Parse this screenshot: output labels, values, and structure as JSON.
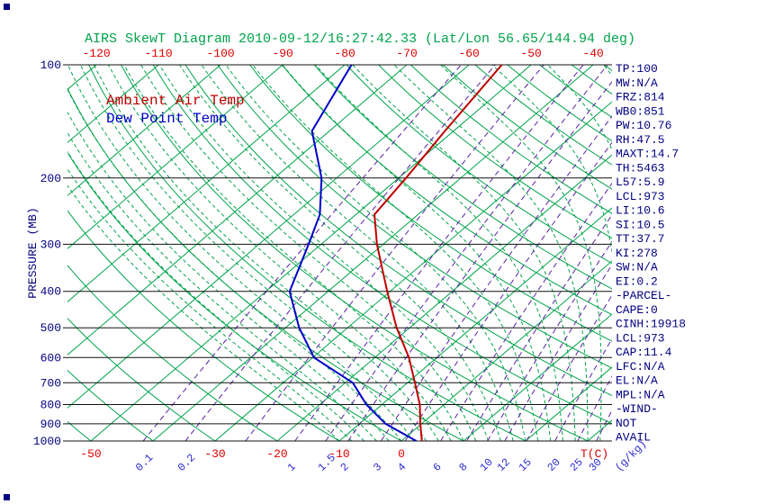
{
  "title": "AIRS SkewT Diagram 2010-09-12/16:27:42.33 (Lat/Lon 56.65/144.94 deg)",
  "legend": {
    "ambient": "Ambient Air Temp",
    "dew_point": "Dew Point Temp"
  },
  "axes": {
    "pressure_label": "PRESSURE (MB)",
    "pressure_ticks_mb": [
      100,
      200,
      300,
      400,
      500,
      600,
      700,
      800,
      900,
      1000
    ],
    "top_temp_ticks_c": [
      -120,
      -110,
      -100,
      -90,
      -80,
      -70,
      -60,
      -50,
      -40
    ],
    "bottom_temp_ticks_c": [
      -50,
      -30,
      -20,
      -10,
      0
    ],
    "temp_unit_label": "T(C)",
    "mixing_ratio_labels": [
      "0.1",
      "0.2",
      "1",
      "1.5",
      "2",
      "3",
      "4",
      "6",
      "8",
      "10",
      "12",
      "15",
      "20",
      "25",
      "30"
    ],
    "mixing_unit_label": "(g/kg)"
  },
  "stats_panel": {
    "lines": [
      "TP:100",
      "MW:N/A",
      "FRZ:814",
      "WB0:851",
      "PW:10.76",
      "RH:47.5",
      "MAXT:14.7",
      "TH:5463",
      "L57:5.9",
      "LCL:973",
      "LI:10.6",
      "SI:10.5",
      "TT:37.7",
      "KI:278",
      "SW:N/A",
      "EI:0.2",
      "-PARCEL-",
      "CAPE:0",
      "CINH:19918",
      "LCL:973",
      "CAP:11.4",
      "LFC:N/A",
      "EL:N/A",
      "MPL:N/A",
      "-WIND-",
      "NOT",
      "AVAIL"
    ]
  },
  "colors": {
    "grid_green": "#00a34a",
    "mixing_ratio_violet": "#5b21a6",
    "ambient_temp_red": "#c00000",
    "dew_point_blue": "#0000c8",
    "axis_label_red": "#e00000",
    "mixing_label_blue": "#2a2ad0",
    "panel_navy": "#000080",
    "pressure_line_black": "#111111",
    "background": "#ffffff"
  },
  "chart_data": {
    "type": "line",
    "title": "AIRS SkewT Diagram 2010-09-12/16:27:42.33 (Lat/Lon 56.65/144.94 deg)",
    "xlabel": "T(C)",
    "ylabel": "PRESSURE (MB)",
    "y_scale": "log",
    "ylim_mb": [
      100,
      1000
    ],
    "x_ticks_top_c": [
      -120,
      -110,
      -100,
      -90,
      -80,
      -70,
      -60,
      -50,
      -40
    ],
    "x_ticks_bottom_c": [
      -50,
      -30,
      -20,
      -10,
      0
    ],
    "grid": "skew-t isotherms, dry adiabats, dashed moist adiabats, dashed mixing-ratio lines",
    "legend_position": "top-left-inside",
    "series": [
      {
        "name": "Ambient Air Temp",
        "color": "#c00000",
        "pressure_mb": [
          1000,
          900,
          800,
          700,
          600,
          500,
          400,
          300,
          250,
          200,
          150,
          100
        ],
        "temp_c": [
          3.3,
          -0.2,
          -3.9,
          -8.8,
          -14.5,
          -22.1,
          -30.5,
          -41.0,
          -47.0,
          -48.8,
          -51.4,
          -54.7
        ]
      },
      {
        "name": "Dew Point Temp",
        "color": "#0000c8",
        "pressure_mb": [
          1000,
          900,
          800,
          700,
          600,
          500,
          400,
          300,
          250,
          200,
          150,
          100
        ],
        "temp_c": [
          2.4,
          -5.8,
          -12.5,
          -18.8,
          -29.8,
          -37.8,
          -46.2,
          -52.0,
          -55.8,
          -62.4,
          -72.8,
          -78.9
        ]
      }
    ],
    "isotherms_c": {
      "min": -130,
      "max": 40,
      "step": 10
    },
    "dry_adiabats_c": {
      "min": -50,
      "max": 180,
      "step": 10
    },
    "moist_adiabats_c": {
      "min": -10,
      "max": 40,
      "step": 2
    },
    "mixing_ratio_lines_gkg": [
      0.1,
      0.2,
      0.5,
      1,
      1.5,
      2,
      3,
      4,
      6,
      8,
      10,
      12,
      15,
      20,
      25,
      30
    ]
  }
}
